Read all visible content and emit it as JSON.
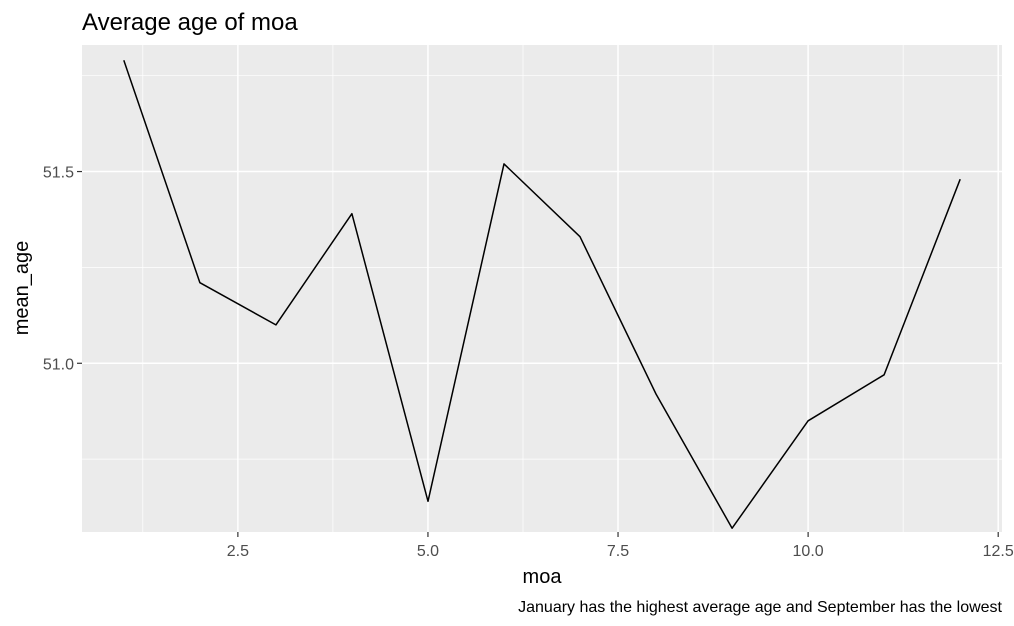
{
  "chart_data": {
    "type": "line",
    "title": "Average age of moa",
    "xlabel": "moa",
    "ylabel": "mean_age",
    "caption": "January has the highest average age and September has the lowest",
    "xlim": [
      0.45,
      12.55
    ],
    "ylim": [
      50.56,
      51.83
    ],
    "x_ticks": [
      {
        "value": 2.5,
        "label": "2.5"
      },
      {
        "value": 5.0,
        "label": "5.0"
      },
      {
        "value": 7.5,
        "label": "7.5"
      },
      {
        "value": 10.0,
        "label": "10.0"
      },
      {
        "value": 12.5,
        "label": "12.5"
      }
    ],
    "y_ticks": [
      {
        "value": 51.0,
        "label": "51.0"
      },
      {
        "value": 51.5,
        "label": "51.5"
      }
    ],
    "grid": true,
    "series": [
      {
        "x": [
          1,
          2,
          3,
          4,
          5,
          6,
          7,
          8,
          9,
          10,
          11,
          12
        ],
        "y": [
          51.79,
          51.21,
          51.1,
          51.39,
          50.64,
          51.52,
          51.33,
          50.92,
          50.57,
          50.85,
          50.97,
          51.48
        ]
      }
    ],
    "colors": {
      "panel": "#ebebeb",
      "grid_major": "#ffffff",
      "line": "#000000",
      "tick_text": "#4d4d4d"
    }
  }
}
